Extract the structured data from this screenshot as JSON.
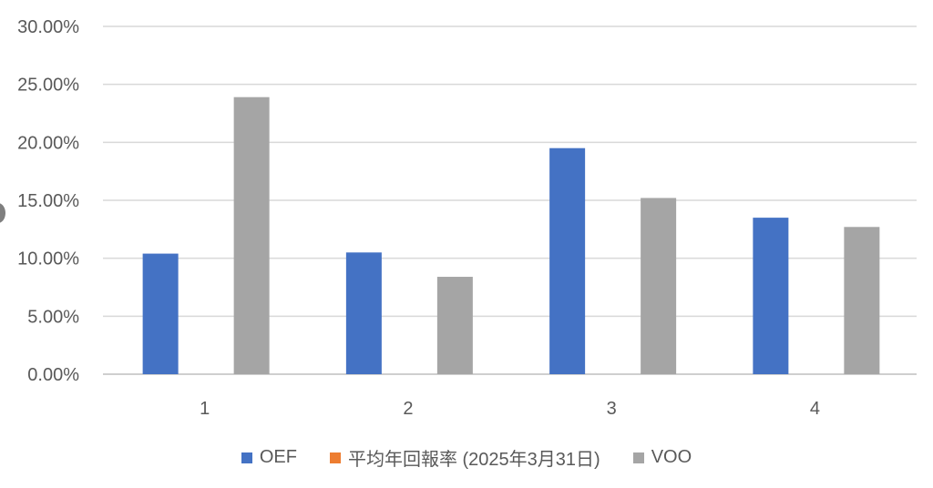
{
  "chart_data": {
    "type": "bar",
    "categories": [
      "1",
      "2",
      "3",
      "4"
    ],
    "series": [
      {
        "name": "OEF",
        "values": [
          10.4,
          10.5,
          19.5,
          13.5
        ],
        "color": "#4472C4"
      },
      {
        "name": "平均年回報率 (2025年3月31日)",
        "values": [
          0,
          0,
          0,
          0
        ],
        "color": "#ED7D31"
      },
      {
        "name": "VOO",
        "values": [
          23.9,
          8.4,
          15.2,
          12.7
        ],
        "color": "#A5A5A5"
      }
    ],
    "ylim": [
      0,
      30
    ],
    "yticks": [
      "0.00%",
      "5.00%",
      "10.00%",
      "15.00%",
      "20.00%",
      "25.00%",
      "30.00%"
    ],
    "grid": true,
    "legend_position": "bottom",
    "title": "",
    "xlabel": "",
    "ylabel": ""
  }
}
